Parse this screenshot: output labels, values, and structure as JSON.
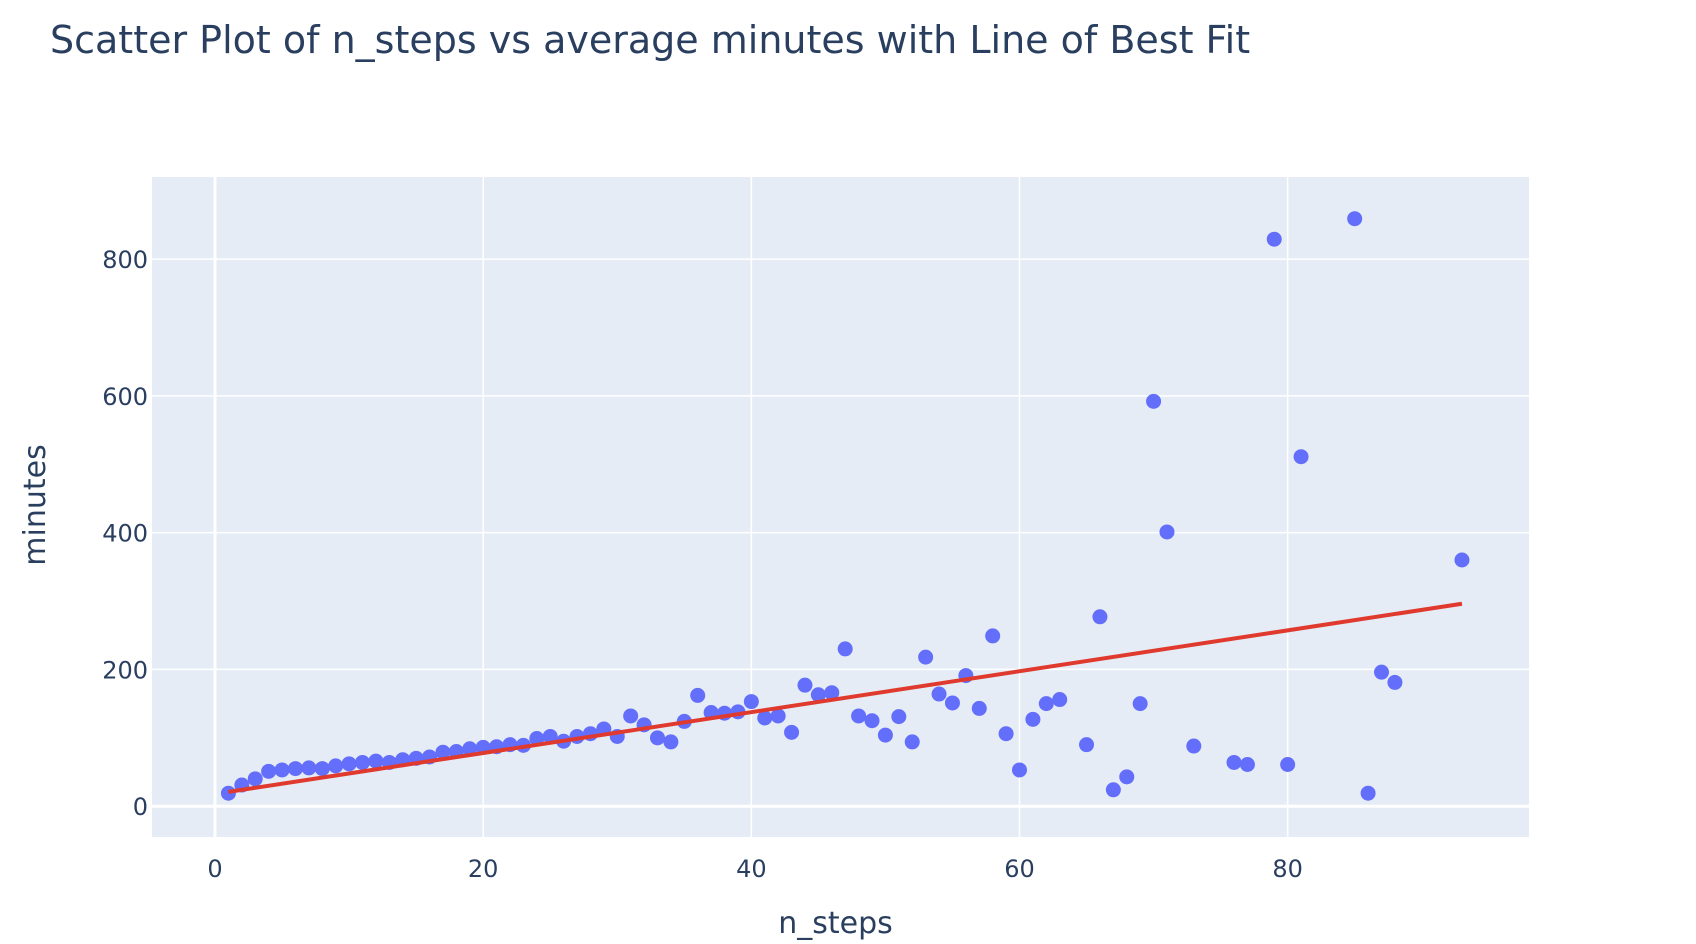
{
  "chart_data": {
    "type": "scatter",
    "title": "Scatter Plot of n_steps vs average minutes with Line of Best Fit",
    "xlabel": "n_steps",
    "ylabel": "minutes",
    "xlim": [
      -4.7,
      98
    ],
    "ylim": [
      -45,
      920
    ],
    "x_ticks": [
      0,
      20,
      40,
      60,
      80
    ],
    "y_ticks": [
      0,
      200,
      400,
      600,
      800
    ],
    "grid": true,
    "colors": {
      "points": "#636efa",
      "fit_line": "#e03a2e",
      "plot_bg": "#e5ecf6",
      "grid": "#ffffff",
      "text": "#2a3f5f"
    },
    "series": [
      {
        "kind": "points",
        "x": [
          1,
          2,
          3,
          4,
          5,
          6,
          7,
          8,
          9,
          10,
          11,
          12,
          13,
          14,
          15,
          16,
          17,
          18,
          19,
          20,
          21,
          22,
          23,
          24,
          25,
          26,
          27,
          28,
          29,
          30,
          31,
          32,
          33,
          34,
          35,
          36,
          37,
          38,
          39,
          40,
          41,
          42,
          43,
          44,
          45,
          46,
          47,
          48,
          49,
          50,
          51,
          52,
          53,
          54,
          55,
          56,
          57,
          58,
          59,
          60,
          61,
          62,
          63,
          65,
          66,
          67,
          68,
          69,
          70,
          71,
          73,
          76,
          77,
          79,
          80,
          81,
          85,
          86,
          87,
          88,
          93
        ],
        "y": [
          19,
          31,
          40,
          51,
          53,
          55,
          56,
          55,
          59,
          62,
          64,
          66,
          64,
          68,
          70,
          72,
          79,
          80,
          84,
          86,
          87,
          90,
          89,
          99,
          102,
          95,
          102,
          106,
          113,
          102,
          132,
          119,
          100,
          94,
          124,
          162,
          137,
          136,
          138,
          153,
          129,
          132,
          108,
          177,
          163,
          166,
          230,
          132,
          125,
          104,
          131,
          94,
          218,
          164,
          151,
          191,
          143,
          249,
          106,
          53,
          127,
          150,
          156,
          90,
          277,
          24,
          43,
          150,
          592,
          401,
          88,
          64,
          61,
          829,
          61,
          511,
          859,
          19,
          196,
          181,
          360
        ]
      },
      {
        "kind": "fit_line",
        "x": [
          1,
          93
        ],
        "y": [
          21,
          296
        ]
      }
    ]
  }
}
